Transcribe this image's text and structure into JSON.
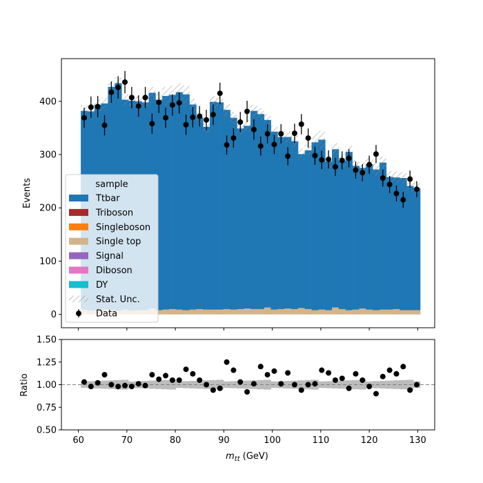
{
  "chart_data": [
    {
      "type": "bar",
      "panel": "main",
      "stacked": true,
      "ylabel": "Events",
      "xlim": [
        56.5,
        133.5
      ],
      "ylim": [
        -25,
        480
      ],
      "yticks": [
        0,
        100,
        200,
        300,
        400
      ],
      "bin_edges_range": [
        60.5,
        130.5
      ],
      "bin_count": 50,
      "bin_width": 1.4,
      "stack_order": [
        "DY",
        "Diboson",
        "Signal",
        "Single top",
        "Singleboson",
        "Triboson",
        "Ttbar"
      ],
      "background_other": [
        9,
        7,
        8,
        9,
        8,
        7,
        9,
        7,
        8,
        8,
        11,
        8,
        9,
        10,
        9,
        8,
        9,
        10,
        9,
        9,
        9,
        10,
        9,
        10,
        11,
        10,
        10,
        13,
        9,
        10,
        11,
        10,
        12,
        10,
        8,
        9,
        8,
        13,
        10,
        8,
        9,
        11,
        9,
        8,
        9,
        9,
        10,
        8,
        8,
        8
      ],
      "total": [
        382,
        381,
        393,
        396,
        427,
        434,
        403,
        401,
        400,
        398,
        416,
        403,
        410,
        412,
        417,
        413,
        394,
        370,
        352,
        399,
        398,
        384,
        369,
        349,
        354,
        382,
        376,
        365,
        343,
        333,
        333,
        325,
        301,
        308,
        323,
        328,
        287,
        310,
        288,
        305,
        279,
        275,
        282,
        272,
        285,
        258,
        257,
        256,
        241,
        237
      ],
      "stat_unc": [
        11,
        11,
        11,
        11,
        11,
        11,
        11,
        11,
        11,
        11,
        11,
        11,
        17,
        17,
        17,
        17,
        11,
        11,
        11,
        11,
        11,
        11,
        11,
        11,
        11,
        11,
        11,
        11,
        11,
        11,
        11,
        11,
        11,
        11,
        17,
        17,
        11,
        11,
        11,
        11,
        11,
        11,
        11,
        11,
        11,
        11,
        11,
        11,
        11,
        11
      ],
      "data": {
        "name": "Data",
        "x": [
          61.2,
          62.6,
          64.0,
          65.4,
          66.8,
          68.2,
          69.6,
          71.0,
          72.4,
          73.8,
          75.2,
          76.6,
          78.0,
          79.4,
          80.8,
          82.2,
          83.6,
          85.0,
          86.4,
          87.8,
          89.2,
          90.6,
          92.0,
          93.4,
          94.8,
          96.2,
          97.6,
          99.0,
          100.4,
          101.8,
          103.2,
          104.6,
          106.0,
          107.4,
          108.8,
          110.2,
          111.6,
          113.0,
          114.4,
          115.8,
          117.2,
          118.6,
          120.0,
          121.4,
          122.8,
          124.2,
          125.6,
          127.0,
          128.4,
          129.8
        ],
        "y": [
          369,
          389,
          390,
          355,
          417,
          426,
          436,
          407,
          391,
          407,
          358,
          398,
          369,
          393,
          397,
          356,
          370,
          372,
          365,
          375,
          415,
          318,
          331,
          361,
          381,
          347,
          316,
          339,
          319,
          339,
          297,
          340,
          357,
          331,
          298,
          290,
          291,
          277,
          289,
          293,
          271,
          266,
          281,
          301,
          256,
          244,
          227,
          215,
          254,
          235
        ],
        "yerr": [
          19,
          20,
          20,
          19,
          20,
          21,
          21,
          20,
          20,
          20,
          19,
          20,
          19,
          20,
          20,
          19,
          19,
          19,
          19,
          19,
          20,
          18,
          18,
          19,
          20,
          19,
          18,
          18,
          18,
          18,
          17,
          18,
          19,
          18,
          17,
          17,
          17,
          17,
          17,
          17,
          16,
          16,
          17,
          17,
          16,
          16,
          15,
          15,
          16,
          15
        ]
      },
      "legend": {
        "title": "sample",
        "placement": "center-left",
        "entries": [
          {
            "label": "Ttbar",
            "kind": "patch",
            "color": "#1f77b4"
          },
          {
            "label": "Triboson",
            "kind": "patch",
            "color": "#a52a2a"
          },
          {
            "label": "Singleboson",
            "kind": "patch",
            "color": "#ff7f0e"
          },
          {
            "label": "Single top",
            "kind": "patch",
            "color": "#d2b48c"
          },
          {
            "label": "Signal",
            "kind": "patch",
            "color": "#9467bd"
          },
          {
            "label": "Diboson",
            "kind": "patch",
            "color": "#e377c2"
          },
          {
            "label": "DY",
            "kind": "patch",
            "color": "#17becf"
          },
          {
            "label": "Stat. Unc.",
            "kind": "hatch",
            "color": "#888888"
          },
          {
            "label": "Data",
            "kind": "errorbar",
            "color": "#000000"
          }
        ]
      }
    },
    {
      "type": "scatter",
      "panel": "ratio",
      "ylabel": "Ratio",
      "xlabel": "m_tt (GeV)",
      "xlabel_parts": {
        "m": "m",
        "sub": "tt",
        "unit": " (GeV)"
      },
      "xlim": [
        56.5,
        133.5
      ],
      "ylim": [
        0.5,
        1.5
      ],
      "xticks": [
        60,
        70,
        80,
        90,
        100,
        110,
        120,
        130
      ],
      "yticks": [
        "0.50",
        "0.75",
        "1.00",
        "1.25",
        "1.50"
      ],
      "reference_line": 1.0,
      "x": [
        61.2,
        62.6,
        64.0,
        65.4,
        66.8,
        68.2,
        69.6,
        71.0,
        72.4,
        73.8,
        75.2,
        76.6,
        78.0,
        79.4,
        80.8,
        82.2,
        83.6,
        85.0,
        86.4,
        87.8,
        89.2,
        90.6,
        92.0,
        93.4,
        94.8,
        96.2,
        97.6,
        99.0,
        100.4,
        101.8,
        103.2,
        104.6,
        106.0,
        107.4,
        108.8,
        110.2,
        111.6,
        113.0,
        114.4,
        115.8,
        117.2,
        118.6,
        120.0,
        121.4,
        122.8,
        124.2,
        125.6,
        127.0,
        128.4,
        129.8
      ],
      "y": [
        1.03,
        0.98,
        1.02,
        1.11,
        1.0,
        0.98,
        0.99,
        0.98,
        1.01,
        0.99,
        1.11,
        1.06,
        1.1,
        1.05,
        1.05,
        1.17,
        1.12,
        1.05,
        1.0,
        0.94,
        0.96,
        1.25,
        1.16,
        1.03,
        0.92,
        1.01,
        1.2,
        1.11,
        1.15,
        1.01,
        1.13,
        1.0,
        0.94,
        1.0,
        1.01,
        1.16,
        1.13,
        1.05,
        1.07,
        0.96,
        1.12,
        1.05,
        0.98,
        0.9,
        1.09,
        1.16,
        1.12,
        1.2,
        0.94,
        1.0
      ],
      "unc_band": 0.045
    }
  ]
}
